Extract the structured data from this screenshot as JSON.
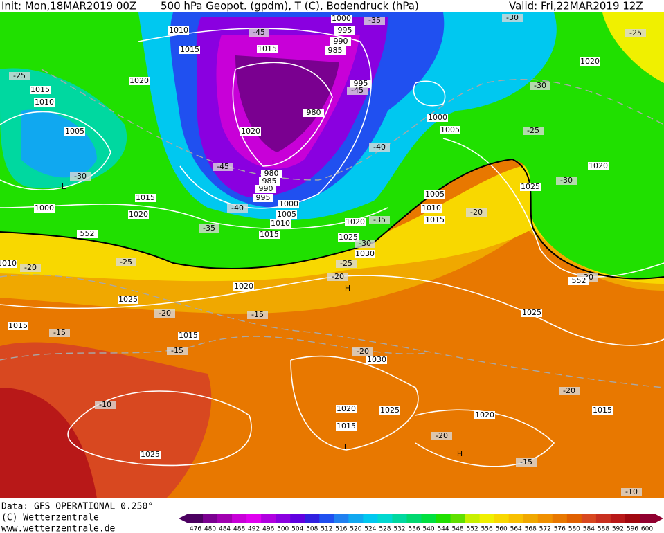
{
  "header": {
    "init": "Init: Mon,18MAR2019 00Z",
    "title": "500 hPa Geopot. (gpdm), T (C), Bodendruck (hPa)",
    "valid": "Valid: Fri,22MAR2019 12Z"
  },
  "footer": {
    "source": "Data: GFS OPERATIONAL 0.250°",
    "copyright": "(C) Wetterzentrale",
    "website": "www.wetterzentrale.de"
  },
  "colorbar": {
    "labels": [
      476,
      480,
      484,
      488,
      492,
      496,
      500,
      504,
      508,
      512,
      516,
      520,
      524,
      528,
      532,
      536,
      540,
      544,
      548,
      552,
      556,
      560,
      564,
      568,
      572,
      576,
      580,
      584,
      588,
      592,
      596,
      600
    ],
    "colors": [
      "#4b0060",
      "#7a0090",
      "#a000b0",
      "#c800d8",
      "#e000f0",
      "#b000e0",
      "#8a00e0",
      "#6000e0",
      "#3020e0",
      "#2050f0",
      "#2080f0",
      "#10a8f0",
      "#00c8f0",
      "#00d8d0",
      "#00d8a0",
      "#00d870",
      "#00e040",
      "#20e000",
      "#60e000",
      "#c8f000",
      "#f0f000",
      "#f8d800",
      "#f8c000",
      "#f0a800",
      "#f09000",
      "#e87800",
      "#e06000",
      "#d84820",
      "#c83020",
      "#b81818",
      "#a00810",
      "#900030"
    ]
  },
  "map": {
    "labels": [
      "1010",
      "1015",
      "1015",
      "1000",
      "995",
      "990",
      "985",
      "995",
      "980",
      "1000",
      "1005",
      "1020",
      "1015",
      "1010",
      "1005",
      "1020",
      "980",
      "985",
      "990",
      "995",
      "1000",
      "1005",
      "1010",
      "1015",
      "1015",
      "1020",
      "1000",
      "1020",
      "1025",
      "1030",
      "1005",
      "1010",
      "1015",
      "1025",
      "1020",
      "1020",
      "1020",
      "1025",
      "1015",
      "1015",
      "1025",
      "1030",
      "1020",
      "1025",
      "1015",
      "1020",
      "1015",
      "1025",
      "1010",
      "-45",
      "-35",
      "-30",
      "-25",
      "-25",
      "-45",
      "-30",
      "-25",
      "-40",
      "-45",
      "-30",
      "-30",
      "-40",
      "-35",
      "-20",
      "-35",
      "-30",
      "-25",
      "-20",
      "-25",
      "-20",
      "-20",
      "-20",
      "-15",
      "-15",
      "-15",
      "-20",
      "-10",
      "-20",
      "-20",
      "-15",
      "-10",
      "L",
      "L",
      "H",
      "L",
      "H",
      "552",
      "552"
    ]
  }
}
